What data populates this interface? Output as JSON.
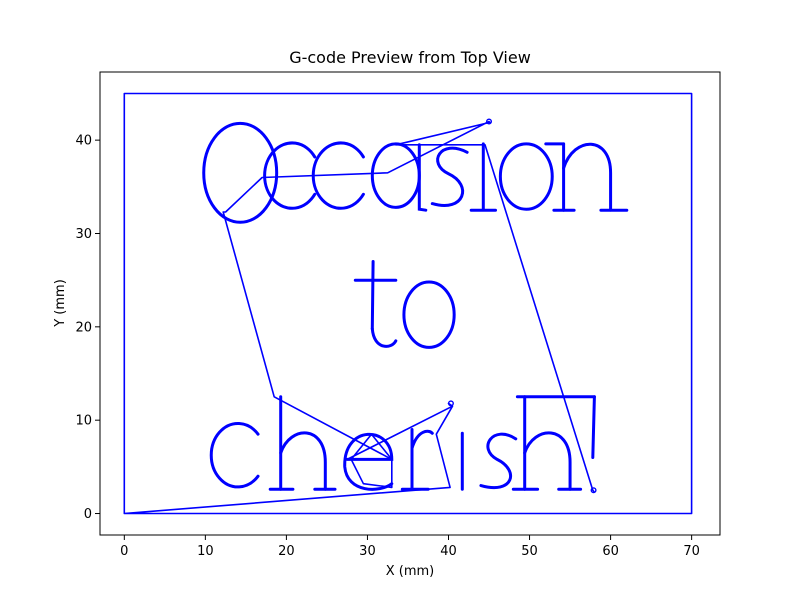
{
  "chart_data": {
    "type": "line",
    "title": "G-code Preview from Top View",
    "xlabel": "X (mm)",
    "ylabel": "Y (mm)",
    "xlim": [
      -3,
      73.5
    ],
    "ylim": [
      -2.3,
      47.3
    ],
    "xticks": [
      0,
      10,
      20,
      30,
      40,
      50,
      60,
      70
    ],
    "yticks": [
      0,
      10,
      20,
      30,
      40
    ],
    "grid": false,
    "line_color": "#0000ff",
    "series": [
      {
        "values": [
          [
            0,
            0
          ],
          [
            70,
            0
          ],
          [
            70,
            45
          ],
          [
            0,
            45
          ],
          [
            0,
            0
          ],
          [
            40.2,
            2.8
          ],
          [
            38.5,
            8.5
          ],
          [
            40.5,
            11.5
          ],
          [
            40,
            11.8
          ],
          [
            40.5,
            11.5
          ],
          [
            27.5,
            5.8
          ],
          [
            33,
            5.8
          ],
          [
            27.5,
            5.8
          ],
          [
            33,
            5.8
          ],
          [
            30.5,
            8.5
          ],
          [
            28,
            5.8
          ],
          [
            29.5,
            3.2
          ],
          [
            33,
            2.8
          ],
          [
            33,
            5.8
          ],
          [
            18.5,
            12.5
          ],
          [
            12.2,
            32.3
          ],
          [
            12.5,
            32.3
          ],
          [
            17,
            36
          ],
          [
            32.5,
            36.5
          ],
          [
            45,
            42
          ],
          [
            45.1,
            41.9
          ],
          [
            33.5,
            39.5
          ],
          [
            44.5,
            39.5
          ],
          [
            57.8,
            2.5
          ],
          [
            58,
            2.3
          ]
        ]
      }
    ],
    "annotations": []
  }
}
